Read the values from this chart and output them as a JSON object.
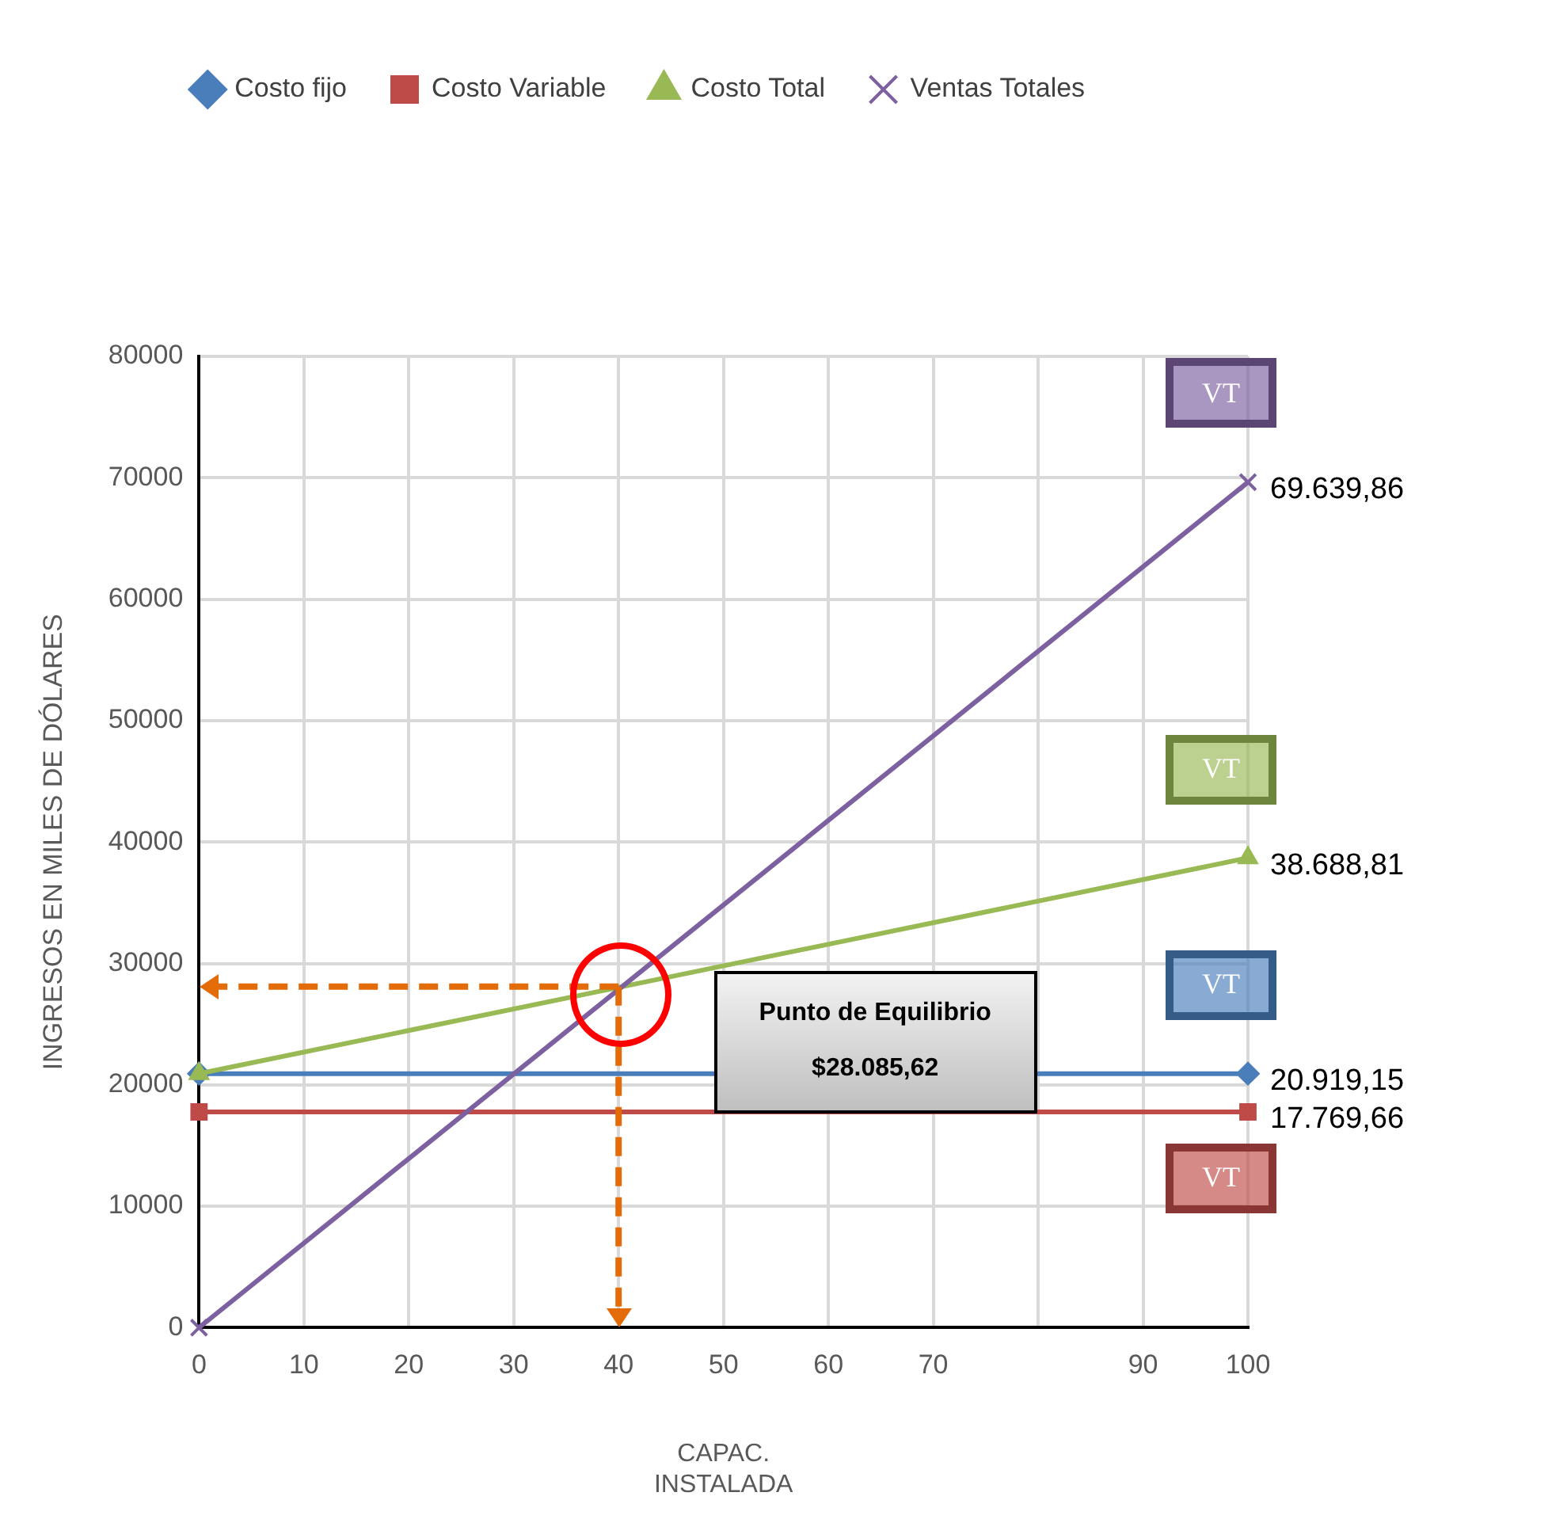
{
  "chart_data": {
    "type": "line",
    "xlabel": "CAPAC.\nINSTALADA",
    "ylabel": "INGRESOS EN MILES DE DÓLARES",
    "x": [
      0,
      100
    ],
    "series": [
      {
        "name": "Costo fijo",
        "color": "#4a7ebb",
        "values": [
          20919.15,
          20919.15
        ],
        "marker": "diamond",
        "value_labels": [
          null,
          "20.919,15"
        ]
      },
      {
        "name": "Costo Variable",
        "color": "#be4b48",
        "values": [
          17769.66,
          17769.66
        ],
        "marker": "square",
        "value_labels": [
          null,
          "17.769,66"
        ]
      },
      {
        "name": "Costo Total",
        "color": "#98b954",
        "values": [
          20919.15,
          38688.81
        ],
        "marker": "triangle",
        "value_labels": [
          null,
          "38.688,81"
        ]
      },
      {
        "name": "Ventas Totales",
        "color": "#7d60a0",
        "values": [
          0,
          69639.86
        ],
        "marker": "cross",
        "value_labels": [
          null,
          "69.639,86"
        ]
      }
    ],
    "xlim": [
      0,
      100
    ],
    "xticks": [
      0,
      10,
      20,
      30,
      40,
      50,
      60,
      70,
      {
        "value": 80,
        "label": null
      },
      90,
      100
    ],
    "ylim": [
      0,
      80000
    ],
    "yticks": [
      0,
      10000,
      20000,
      30000,
      40000,
      50000,
      60000,
      70000,
      80000
    ],
    "grid": true,
    "legend": "top",
    "ref_lines": [
      {
        "axis": "x",
        "value": 40,
        "color": "#e36c09",
        "line_style": "dashed"
      },
      {
        "axis": "y",
        "value": 28085.62,
        "color": "#e36c09",
        "line_style": "dashed"
      }
    ],
    "annotations": [
      "Punto de Equilibrio",
      "$28.085,62",
      "VT",
      "VT",
      "VT",
      "VT"
    ]
  }
}
